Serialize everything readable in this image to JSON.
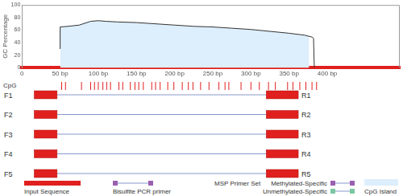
{
  "chart_data": {
    "type": "line",
    "y_label": "GC Percentage",
    "x": [
      50,
      50,
      60,
      75,
      90,
      100,
      110,
      125,
      150,
      175,
      200,
      225,
      250,
      275,
      300,
      325,
      350,
      370,
      380,
      382,
      383
    ],
    "values": [
      30,
      65,
      66,
      68,
      74,
      75,
      74,
      73,
      72,
      70,
      68,
      66,
      65,
      63,
      61,
      58,
      55,
      52,
      49,
      47,
      0
    ],
    "color": "#333333",
    "xlim": [
      0,
      495
    ],
    "xticks": [
      0,
      {
        "value": 50,
        "label": "50 bp"
      },
      {
        "value": 100,
        "label": "100 bp"
      },
      {
        "value": 150,
        "label": "150 bp"
      },
      {
        "value": 200,
        "label": "200 bp"
      },
      {
        "value": 250,
        "label": "250 bp"
      },
      {
        "value": 300,
        "label": "300 bp"
      },
      {
        "value": 350,
        "label": "350 bp"
      },
      {
        "value": 400,
        "label": "400 bp"
      }
    ],
    "ylim": [
      0,
      100
    ],
    "yticks": [
      0,
      20,
      40,
      60,
      80,
      100
    ],
    "cpg_island": {
      "start": 50,
      "end": 376
    }
  },
  "cpg_track": {
    "label": "CpG",
    "positions": [
      52,
      57,
      78,
      90,
      95,
      100,
      106,
      111,
      116,
      127,
      132,
      142,
      148,
      153,
      159,
      170,
      175,
      181,
      191,
      199,
      210,
      218,
      224,
      234,
      245,
      258,
      266,
      271,
      287,
      300,
      311,
      323,
      332,
      348,
      355,
      364,
      372,
      380,
      386
    ]
  },
  "primer_sets": [
    {
      "forward": {
        "label": "F1",
        "start": 16,
        "end": 46
      },
      "reverse": {
        "label": "R1",
        "start": 320,
        "end": 362
      }
    },
    {
      "forward": {
        "label": "F2",
        "start": 16,
        "end": 46
      },
      "reverse": {
        "label": "R2",
        "start": 320,
        "end": 362
      }
    },
    {
      "forward": {
        "label": "F3",
        "start": 16,
        "end": 46
      },
      "reverse": {
        "label": "R3",
        "start": 320,
        "end": 362
      }
    },
    {
      "forward": {
        "label": "F4",
        "start": 16,
        "end": 46
      },
      "reverse": {
        "label": "R4",
        "start": 320,
        "end": 362
      }
    },
    {
      "forward": {
        "label": "F5",
        "start": 16,
        "end": 46
      },
      "reverse": {
        "label": "R5",
        "start": 320,
        "end": 362
      }
    }
  ],
  "legend": {
    "input_sequence": "Input Sequence",
    "bisulfite_primer": "Bisulfite PCR primer",
    "msp_primer_set": "MSP Primer Set",
    "methylated": "Methylated-Specific",
    "unmethylated": "Unmethylated-Specific",
    "cpg_island": "CpG Island"
  }
}
